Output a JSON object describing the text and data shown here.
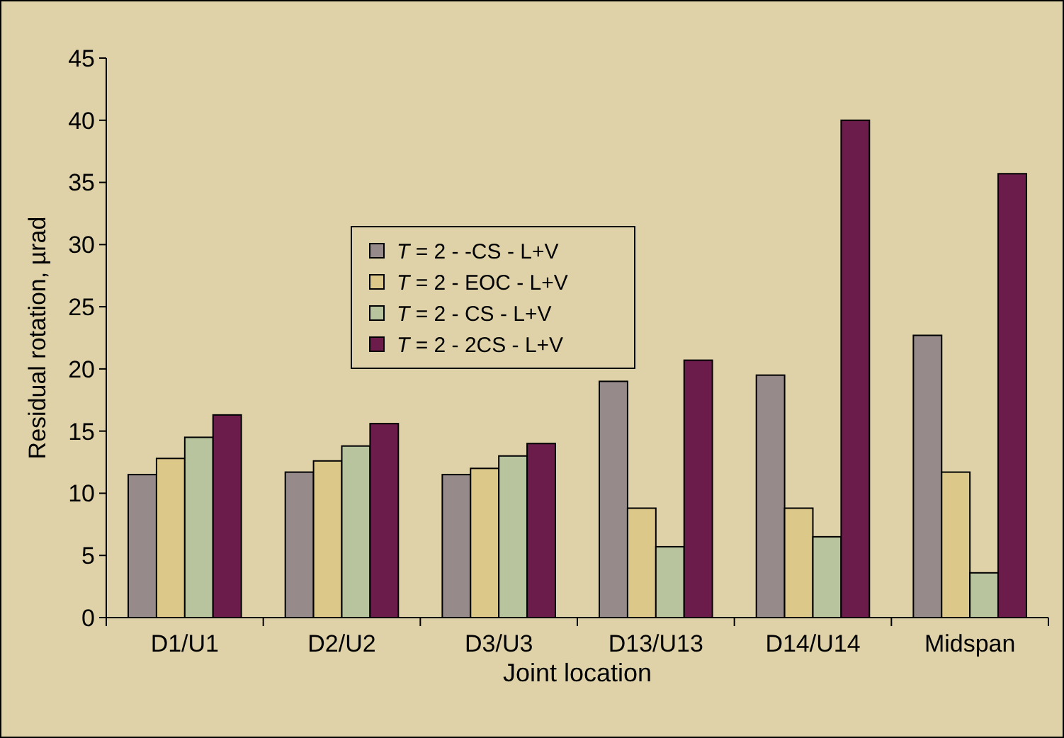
{
  "chart_data": {
    "type": "bar",
    "xlabel": "Joint location",
    "ylabel": "Residual rotation, µrad",
    "categories": [
      "D1/U1",
      "D2/U2",
      "D3/U3",
      "D13/U13",
      "D14/U14",
      "Midspan"
    ],
    "ylim": [
      0,
      45
    ],
    "yticks": [
      0,
      5,
      10,
      15,
      20,
      25,
      30,
      35,
      40,
      45
    ],
    "grid": false,
    "legend": "center",
    "series": [
      {
        "name": "T = 2 - -CS - L+V",
        "color": "#968a8a",
        "values": [
          11.5,
          11.7,
          11.5,
          19.0,
          19.5,
          22.7
        ]
      },
      {
        "name": "T = 2 - EOC - L+V",
        "color": "#dcc98a",
        "values": [
          12.8,
          12.6,
          12.0,
          8.8,
          8.8,
          11.7
        ]
      },
      {
        "name": "T = 2 - CS - L+V",
        "color": "#b8c49e",
        "values": [
          14.5,
          13.8,
          13.0,
          5.7,
          6.5,
          3.6
        ]
      },
      {
        "name": "T = 2 - 2CS - L+V",
        "color": "#6b1c4a",
        "values": [
          16.3,
          15.6,
          14.0,
          20.7,
          40.0,
          35.7
        ]
      }
    ]
  }
}
